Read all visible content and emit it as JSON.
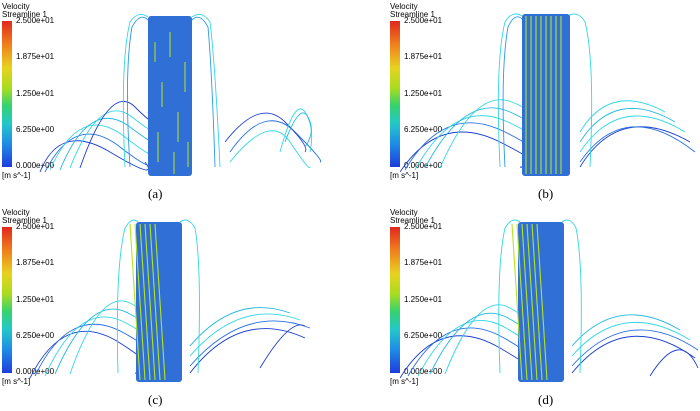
{
  "legend": {
    "variable": "Velocity",
    "object": "Streamline 1",
    "ticks": [
      "2.500e+01",
      "1.875e+01",
      "1.250e+01",
      "6.250e+00",
      "0.000e+00"
    ],
    "unit": "[m s^-1]"
  },
  "panels": [
    {
      "caption": "(a)"
    },
    {
      "caption": "(b)"
    },
    {
      "caption": "(c)"
    },
    {
      "caption": "(d)"
    }
  ],
  "colors": {
    "wheel": "#2f6fd6",
    "streamline_light": "#33d6e6",
    "streamline_dark": "#1c3fd0",
    "streamline_fast": "#b4e61e"
  }
}
